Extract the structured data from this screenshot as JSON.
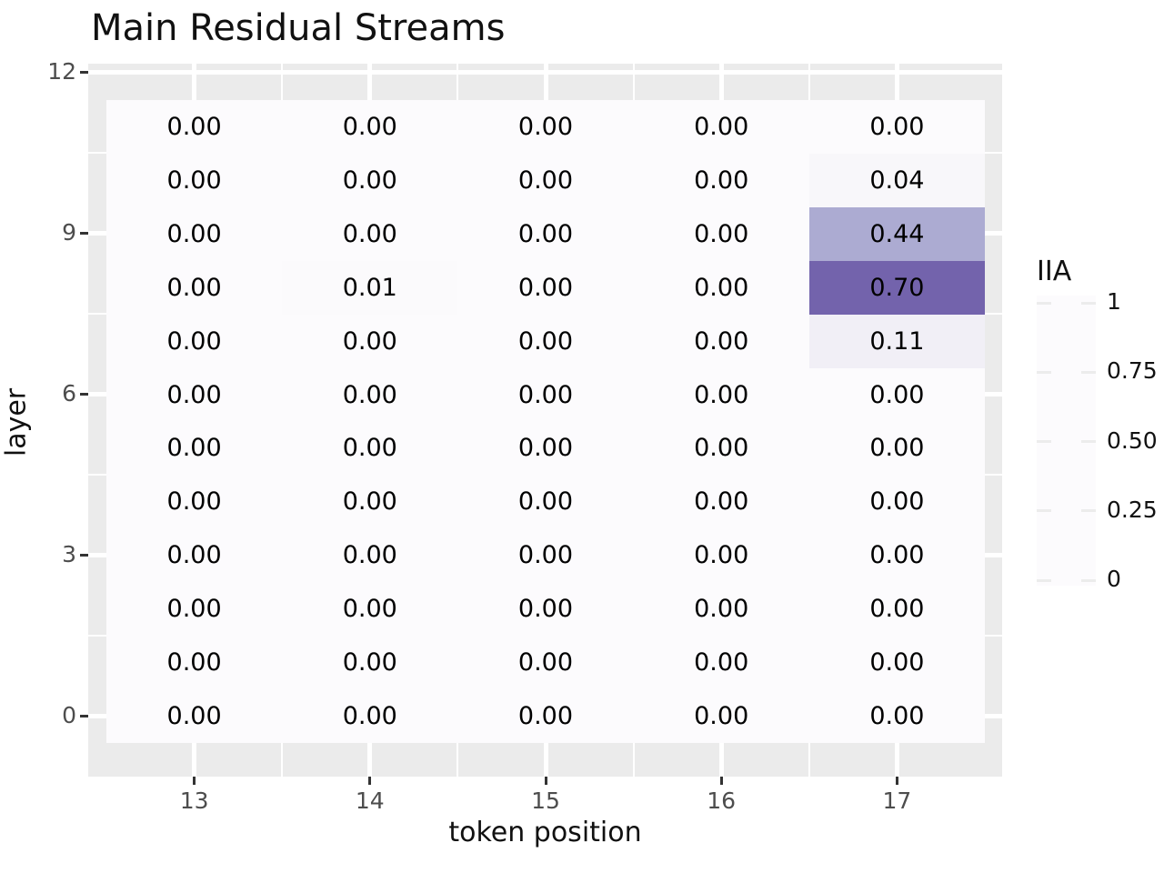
{
  "title": "Main Residual Streams",
  "chart_data": {
    "type": "heatmap",
    "title": "Main Residual Streams",
    "xlabel": "token position",
    "ylabel": "layer",
    "x_categories": [
      13,
      14,
      15,
      16,
      17
    ],
    "x_tick_labels": [
      "13",
      "14",
      "15",
      "16",
      "17"
    ],
    "y_tick_labels": [
      "0",
      "3",
      "6",
      "9",
      "12"
    ],
    "y_axis_range": [
      0,
      12
    ],
    "grid": true,
    "legend_position": "right",
    "value_format_decimals": 2,
    "rows_top_to_bottom": [
      {
        "layer": 11,
        "values": [
          0.0,
          0.0,
          0.0,
          0.0,
          0.0
        ]
      },
      {
        "layer": 10,
        "values": [
          0.0,
          0.0,
          0.0,
          0.0,
          0.04
        ]
      },
      {
        "layer": 9,
        "values": [
          0.0,
          0.0,
          0.0,
          0.0,
          0.44
        ]
      },
      {
        "layer": 8,
        "values": [
          0.0,
          0.01,
          0.0,
          0.0,
          0.7
        ]
      },
      {
        "layer": 7,
        "values": [
          0.0,
          0.0,
          0.0,
          0.0,
          0.11
        ]
      },
      {
        "layer": 6,
        "values": [
          0.0,
          0.0,
          0.0,
          0.0,
          0.0
        ]
      },
      {
        "layer": 5,
        "values": [
          0.0,
          0.0,
          0.0,
          0.0,
          0.0
        ]
      },
      {
        "layer": 4,
        "values": [
          0.0,
          0.0,
          0.0,
          0.0,
          0.0
        ]
      },
      {
        "layer": 3,
        "values": [
          0.0,
          0.0,
          0.0,
          0.0,
          0.0
        ]
      },
      {
        "layer": 2,
        "values": [
          0.0,
          0.0,
          0.0,
          0.0,
          0.0
        ]
      },
      {
        "layer": 1,
        "values": [
          0.0,
          0.0,
          0.0,
          0.0,
          0.0
        ]
      },
      {
        "layer": 0,
        "values": [
          0.0,
          0.0,
          0.0,
          0.0,
          0.0
        ]
      }
    ],
    "legend": {
      "title": "IIA",
      "tick_labels": [
        "1",
        "0.75",
        "0.50",
        "0.25",
        "0"
      ],
      "limits": [
        0,
        1
      ]
    },
    "colors": {
      "background": "#FFFFFF",
      "panel_background": "#EBEBEB",
      "gridline": "#FFFFFF",
      "tick_mark": "#333333",
      "tick_label": "#4D4D4D",
      "text": "#000000",
      "colormap_name": "Purples",
      "colormap_stops_low_to_high": [
        "#FCFBFD",
        "#EFEDF5",
        "#DADAEB",
        "#BCBDDC",
        "#9E9AC8",
        "#807DBA",
        "#6A51A3",
        "#54278F",
        "#3F007D"
      ]
    }
  }
}
